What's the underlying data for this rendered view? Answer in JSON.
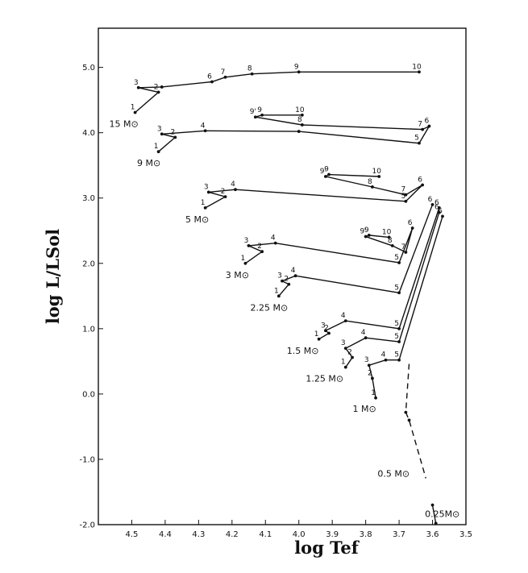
{
  "chart_data": {
    "type": "line",
    "title": "",
    "xlabel": "log Tef",
    "ylabel": "log L/LSol",
    "x_axis_reversed": true,
    "xlim": [
      4.6,
      3.5
    ],
    "ylim": [
      -2.0,
      5.6
    ],
    "x_ticks": [
      "4.5",
      "4.4",
      "4.3",
      "4.2",
      "4.1",
      "4.0",
      "3.9",
      "3.8",
      "3.7",
      "3.6",
      "3.5"
    ],
    "y_ticks": [
      "5.0",
      "4.0",
      "3.0",
      "2.0",
      "1.0",
      "0.0",
      "-1.0",
      "-2.0"
    ],
    "grid": false,
    "legend": "none",
    "series": [
      {
        "name": "15 M⊙",
        "points": [
          {
            "label": "1",
            "x": 4.49,
            "y": 4.31
          },
          {
            "label": "2",
            "x": 4.42,
            "y": 4.62
          },
          {
            "label": "3",
            "x": 4.48,
            "y": 4.69
          },
          {
            "label": "",
            "x": 4.41,
            "y": 4.7
          },
          {
            "label": "6",
            "x": 4.26,
            "y": 4.78
          },
          {
            "label": "7",
            "x": 4.22,
            "y": 4.85
          },
          {
            "label": "8",
            "x": 4.14,
            "y": 4.9
          },
          {
            "label": "9",
            "x": 4.0,
            "y": 4.93
          },
          {
            "label": "10",
            "x": 3.64,
            "y": 4.93
          }
        ]
      },
      {
        "name": "9 M⊙",
        "points": [
          {
            "label": "1",
            "x": 4.42,
            "y": 3.71
          },
          {
            "label": "2",
            "x": 4.37,
            "y": 3.93
          },
          {
            "label": "3",
            "x": 4.41,
            "y": 3.98
          },
          {
            "label": "4",
            "x": 4.28,
            "y": 4.03
          },
          {
            "label": "",
            "x": 4.0,
            "y": 4.02
          },
          {
            "label": "5",
            "x": 3.64,
            "y": 3.84
          },
          {
            "label": "6",
            "x": 3.61,
            "y": 4.1
          },
          {
            "label": "7",
            "x": 3.63,
            "y": 4.05
          },
          {
            "label": "8",
            "x": 3.99,
            "y": 4.12
          },
          {
            "label": "9'",
            "x": 4.13,
            "y": 4.24
          },
          {
            "label": "9",
            "x": 4.11,
            "y": 4.27
          },
          {
            "label": "10",
            "x": 3.99,
            "y": 4.27
          }
        ]
      },
      {
        "name": "5 M⊙",
        "points": [
          {
            "label": "1",
            "x": 4.28,
            "y": 2.85
          },
          {
            "label": "2",
            "x": 4.22,
            "y": 3.02
          },
          {
            "label": "3",
            "x": 4.27,
            "y": 3.09
          },
          {
            "label": "4",
            "x": 4.19,
            "y": 3.13
          },
          {
            "label": "5",
            "x": 3.68,
            "y": 2.95
          },
          {
            "label": "6",
            "x": 3.63,
            "y": 3.2
          },
          {
            "label": "7",
            "x": 3.68,
            "y": 3.05
          },
          {
            "label": "8",
            "x": 3.78,
            "y": 3.17
          },
          {
            "label": "9'",
            "x": 3.92,
            "y": 3.33
          },
          {
            "label": "9",
            "x": 3.91,
            "y": 3.36
          },
          {
            "label": "10",
            "x": 3.76,
            "y": 3.33
          }
        ]
      },
      {
        "name": "3 M⊙",
        "points": [
          {
            "label": "1",
            "x": 4.16,
            "y": 2.0
          },
          {
            "label": "2",
            "x": 4.11,
            "y": 2.18
          },
          {
            "label": "3",
            "x": 4.15,
            "y": 2.27
          },
          {
            "label": "4",
            "x": 4.07,
            "y": 2.31
          },
          {
            "label": "5",
            "x": 3.7,
            "y": 2.01
          },
          {
            "label": "6",
            "x": 3.66,
            "y": 2.54
          },
          {
            "label": "7",
            "x": 3.68,
            "y": 2.17
          },
          {
            "label": "8",
            "x": 3.72,
            "y": 2.27
          },
          {
            "label": "9'",
            "x": 3.8,
            "y": 2.41
          },
          {
            "label": "9",
            "x": 3.79,
            "y": 2.43
          },
          {
            "label": "10",
            "x": 3.73,
            "y": 2.4
          }
        ]
      },
      {
        "name": "2.25 M⊙",
        "points": [
          {
            "label": "1",
            "x": 4.06,
            "y": 1.5
          },
          {
            "label": "2",
            "x": 4.03,
            "y": 1.68
          },
          {
            "label": "3",
            "x": 4.05,
            "y": 1.73
          },
          {
            "label": "4",
            "x": 4.01,
            "y": 1.81
          },
          {
            "label": "5",
            "x": 3.7,
            "y": 1.55
          },
          {
            "label": "6",
            "x": 3.6,
            "y": 2.9
          }
        ]
      },
      {
        "name": "1.5 M⊙",
        "points": [
          {
            "label": "1",
            "x": 3.94,
            "y": 0.84
          },
          {
            "label": "2",
            "x": 3.91,
            "y": 0.93
          },
          {
            "label": "3",
            "x": 3.92,
            "y": 0.97
          },
          {
            "label": "4",
            "x": 3.86,
            "y": 1.12
          },
          {
            "label": "5",
            "x": 3.7,
            "y": 1.0
          },
          {
            "label": "6",
            "x": 3.58,
            "y": 2.85
          }
        ]
      },
      {
        "name": "1.25 M⊙",
        "points": [
          {
            "label": "1",
            "x": 3.86,
            "y": 0.41
          },
          {
            "label": "2",
            "x": 3.84,
            "y": 0.56
          },
          {
            "label": "3",
            "x": 3.86,
            "y": 0.7
          },
          {
            "label": "4",
            "x": 3.8,
            "y": 0.86
          },
          {
            "label": "5",
            "x": 3.7,
            "y": 0.8
          },
          {
            "label": "6",
            "x": 3.58,
            "y": 2.78
          }
        ]
      },
      {
        "name": "1 M⊙",
        "points": [
          {
            "label": "1",
            "x": 3.77,
            "y": -0.06
          },
          {
            "label": "2",
            "x": 3.78,
            "y": 0.24
          },
          {
            "label": "3",
            "x": 3.79,
            "y": 0.44
          },
          {
            "label": "4",
            "x": 3.74,
            "y": 0.52
          },
          {
            "label": "5",
            "x": 3.7,
            "y": 0.52
          },
          {
            "label": "6",
            "x": 3.57,
            "y": 2.72
          }
        ]
      },
      {
        "name": "0.5 M⊙",
        "style": "dashed",
        "points": [
          {
            "label": "",
            "x": 3.67,
            "y": 0.46
          },
          {
            "label": "",
            "x": 3.68,
            "y": -0.28
          },
          {
            "label": "",
            "x": 3.67,
            "y": -0.4
          },
          {
            "label": "",
            "x": 3.62,
            "y": -1.29
          }
        ]
      },
      {
        "name": "0.25M⊙",
        "points": [
          {
            "label": "",
            "x": 3.6,
            "y": -1.7
          },
          {
            "label": "",
            "x": 3.59,
            "y": -1.98
          }
        ]
      }
    ]
  }
}
